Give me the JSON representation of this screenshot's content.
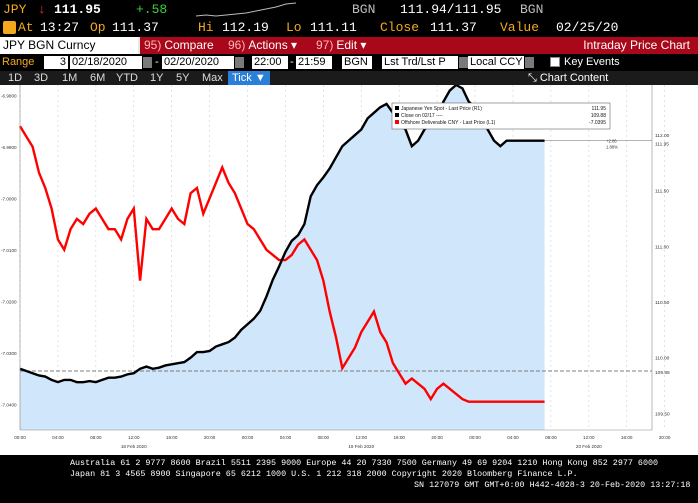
{
  "ticker": {
    "symbol": "JPY",
    "arrow": "↓",
    "last": "111.95",
    "change": "+.58",
    "bid_label": "BGN",
    "bid_ask": "111.94/111.95",
    "ask_label": "BGN"
  },
  "info": {
    "at_label": "At",
    "time": "13:27",
    "open_label": "Op",
    "open": "111.37",
    "hi_label": "Hi",
    "hi": "112.19",
    "lo_label": "Lo",
    "lo": "111.11",
    "close_label": "Close",
    "close": "111.37",
    "value_label": "Value",
    "value_date": "02/25/20"
  },
  "menu": {
    "security": "JPY BGN Curncy",
    "compare_num": "95)",
    "compare": "Compare",
    "actions_num": "96)",
    "actions": "Actions",
    "edit_num": "97)",
    "edit": "Edit",
    "title": "Intraday Price Chart"
  },
  "range": {
    "range_label": "Range",
    "days": "3",
    "start": "02/18/2020",
    "end": "02/20/2020",
    "time_start": "22:00",
    "time_end": "21:59",
    "source": "BGN",
    "field": "Lst Trd/Lst P",
    "currency": "Local CCY",
    "key_events": "Key Events"
  },
  "periods": [
    "1D",
    "3D",
    "1M",
    "6M",
    "YTD",
    "1Y",
    "5Y",
    "Max"
  ],
  "tick_label": "Tick",
  "chart_content": "Chart Content",
  "chart_data": {
    "type": "line",
    "legend": [
      {
        "name": "Japanese Yen Spot - Last Price (R1)",
        "value": "111.95",
        "color": "#000000"
      },
      {
        "name": "Close on 02/17 ----",
        "value": "109.88",
        "color": "#000000"
      },
      {
        "name": "Offshore Deliverable CNY - Last Price (L1)",
        "value": "-7.0395",
        "color": "#ff0000"
      }
    ],
    "left_axis_ticks": [
      "-6.9800",
      "-6.9900",
      "-7.0000",
      "-7.0100",
      "-7.0200",
      "-7.0300",
      "-7.0400"
    ],
    "right_axis_ticks": [
      "112.00",
      "111.95",
      "111.50",
      "111.00",
      "110.50",
      "110.00",
      "109.88",
      "109.50"
    ],
    "right_axis_tag": "+2.06 1.88%",
    "x_ticks": [
      "00:00",
      "04:00",
      "08:00",
      "12:00",
      "16:00",
      "20:00",
      "00:00",
      "04:00",
      "08:00",
      "12:00",
      "16:00",
      "20:00",
      "00:00",
      "04:00",
      "08:00",
      "12:00",
      "16:00",
      "20:00"
    ],
    "date_labels": [
      "18 Feb 2020",
      "19 Feb 2020",
      "20 Feb 2020"
    ],
    "y_right_range": [
      109.35,
      112.45
    ],
    "y_left_range": [
      -7.045,
      -6.978
    ],
    "series": [
      {
        "name": "Japanese Yen Spot - Last Price (R1)",
        "axis": "right",
        "x": [
          0,
          2,
          4,
          6,
          8,
          10,
          12,
          14,
          16,
          18,
          20,
          22,
          24,
          26,
          28,
          30,
          32,
          34,
          36,
          38,
          40,
          42,
          44,
          46,
          48,
          50,
          52,
          54,
          56,
          58,
          60,
          62,
          64,
          66,
          68,
          70,
          72,
          74,
          76,
          78,
          80,
          82,
          84,
          86,
          88,
          90,
          92,
          94,
          96,
          98,
          100,
          102,
          104,
          106,
          108,
          110,
          112,
          114,
          116,
          118,
          120,
          122,
          124,
          126,
          128,
          130,
          132,
          134,
          136,
          138,
          140,
          142,
          144,
          146,
          148,
          150,
          152,
          154,
          156,
          158,
          160,
          162,
          164,
          166
        ],
        "values": [
          109.9,
          109.88,
          109.86,
          109.84,
          109.83,
          109.8,
          109.78,
          109.8,
          109.8,
          109.78,
          109.78,
          109.79,
          109.78,
          109.8,
          109.82,
          109.82,
          109.83,
          109.85,
          109.86,
          109.9,
          109.92,
          109.9,
          109.91,
          109.93,
          109.94,
          109.95,
          109.96,
          110.0,
          110.05,
          110.05,
          110.06,
          110.1,
          110.12,
          110.14,
          110.18,
          110.25,
          110.3,
          110.35,
          110.42,
          110.55,
          110.7,
          110.82,
          110.95,
          111.05,
          111.1,
          111.2,
          111.45,
          111.55,
          111.62,
          111.7,
          111.8,
          111.9,
          111.95,
          112.0,
          112.05,
          112.15,
          112.2,
          112.25,
          112.28,
          112.2,
          112.1,
          112.05,
          111.9,
          111.95,
          112.05,
          112.1,
          112.15,
          112.3,
          112.4,
          112.45,
          112.42,
          112.3,
          112.25,
          112.15,
          112.05,
          111.95,
          111.9,
          111.95,
          111.95,
          111.95,
          111.95,
          111.95,
          111.95,
          111.95
        ]
      },
      {
        "name": "Offshore Deliverable CNY - Last Price (L1)",
        "axis": "left",
        "x": [
          0,
          2,
          4,
          6,
          8,
          10,
          12,
          14,
          16,
          18,
          20,
          22,
          24,
          26,
          28,
          30,
          32,
          34,
          36,
          38,
          40,
          42,
          44,
          46,
          48,
          50,
          52,
          54,
          56,
          58,
          60,
          62,
          64,
          66,
          68,
          70,
          72,
          74,
          76,
          78,
          80,
          82,
          84,
          86,
          88,
          90,
          92,
          94,
          96,
          98,
          100,
          102,
          104,
          106,
          108,
          110,
          112,
          114,
          116,
          118,
          120,
          122,
          124,
          126,
          128,
          130,
          132,
          134,
          136,
          138,
          140,
          142,
          144,
          146,
          148,
          150,
          152,
          154,
          156,
          158,
          160,
          162,
          164,
          166
        ],
        "values": [
          -6.986,
          -6.988,
          -6.99,
          -6.995,
          -6.998,
          -7.002,
          -7.008,
          -7.01,
          -7.006,
          -7.004,
          -7.005,
          -7.003,
          -7.002,
          -7.004,
          -7.006,
          -7.006,
          -7.008,
          -7.004,
          -7.002,
          -7.016,
          -7.004,
          -7.006,
          -7.006,
          -7.004,
          -7.002,
          -7.004,
          -7.005,
          -6.999,
          -6.998,
          -7.003,
          -7.0,
          -6.997,
          -6.994,
          -6.997,
          -6.999,
          -7.002,
          -7.005,
          -7.006,
          -7.008,
          -7.01,
          -7.011,
          -7.012,
          -7.012,
          -7.011,
          -7.009,
          -7.008,
          -7.01,
          -7.012,
          -7.016,
          -7.022,
          -7.027,
          -7.033,
          -7.031,
          -7.029,
          -7.026,
          -7.024,
          -7.022,
          -7.026,
          -7.028,
          -7.032,
          -7.034,
          -7.036,
          -7.035,
          -7.036,
          -7.037,
          -7.039,
          -7.037,
          -7.036,
          -7.037,
          -7.038,
          -7.039,
          -7.0395,
          -7.0395,
          -7.0395,
          -7.0395,
          -7.0395,
          -7.0395,
          -7.0395,
          -7.0395,
          -7.0395,
          -7.0395,
          -7.0395,
          -7.0395,
          -7.0395
        ]
      }
    ],
    "close_line": 109.88
  },
  "footer": {
    "line1": "Australia 61 2 9777 8600 Brazil 5511 2395 9000 Europe 44 20 7330 7500 Germany 49 69 9204 1210 Hong Kong 852 2977 6000",
    "line2": "Japan 81 3 4565 8900          Singapore 65 6212 1000       U.S. 1 212 318 2000          Copyright 2020 Bloomberg Finance L.P.",
    "line3": "SN 127079 GMT GMT+0:00 H442-4028-3 20-Feb-2020 13:27:18"
  },
  "colors": {
    "amber": "#f3a81d",
    "menu_red": "#a8081a",
    "cny": "#ff0000",
    "fill": "#cfe6fb",
    "tick_blue": "#2a7fd8"
  }
}
